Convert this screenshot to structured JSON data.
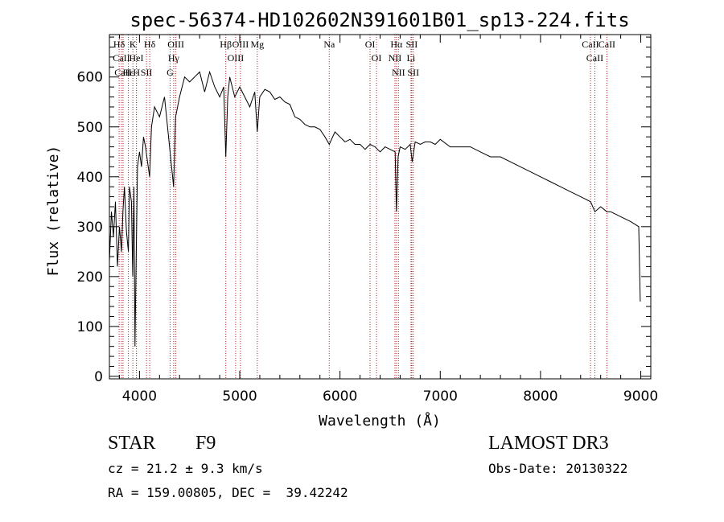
{
  "chart_data": {
    "type": "line",
    "title": "spec-56374-HD102602N391601B01_sp13-224.fits",
    "xlabel": "Wavelength (Å)",
    "ylabel": "Flux (relative)",
    "xlim": [
      3700,
      9100
    ],
    "ylim": [
      -5,
      685
    ],
    "x_ticks": [
      4000,
      5000,
      6000,
      7000,
      8000,
      9000
    ],
    "y_ticks": [
      0,
      100,
      200,
      300,
      400,
      500,
      600
    ],
    "grid": false,
    "series": [
      {
        "name": "Flux",
        "x": [
          3700,
          3720,
          3740,
          3760,
          3780,
          3800,
          3820,
          3835,
          3850,
          3870,
          3889,
          3900,
          3920,
          3933,
          3945,
          3955,
          3968,
          3980,
          4000,
          4020,
          4040,
          4060,
          4080,
          4101,
          4120,
          4150,
          4200,
          4250,
          4300,
          4340,
          4360,
          4400,
          4450,
          4500,
          4550,
          4600,
          4650,
          4700,
          4750,
          4800,
          4840,
          4861,
          4880,
          4900,
          4950,
          5000,
          5050,
          5100,
          5150,
          5175,
          5200,
          5250,
          5300,
          5350,
          5400,
          5450,
          5500,
          5550,
          5600,
          5650,
          5700,
          5750,
          5800,
          5850,
          5893,
          5950,
          6000,
          6050,
          6100,
          6150,
          6200,
          6250,
          6300,
          6350,
          6400,
          6450,
          6500,
          6550,
          6563,
          6580,
          6600,
          6650,
          6700,
          6720,
          6750,
          6800,
          6850,
          6900,
          6950,
          7000,
          7100,
          7200,
          7300,
          7400,
          7500,
          7600,
          7700,
          7800,
          7900,
          8000,
          8100,
          8200,
          8300,
          8400,
          8500,
          8542,
          8600,
          8662,
          8700,
          8800,
          8900,
          8980,
          8995
        ],
        "y": [
          230,
          330,
          280,
          350,
          220,
          300,
          250,
          330,
          380,
          290,
          250,
          380,
          350,
          200,
          380,
          60,
          250,
          420,
          450,
          420,
          480,
          460,
          430,
          400,
          500,
          540,
          520,
          560,
          460,
          380,
          520,
          560,
          600,
          590,
          600,
          610,
          570,
          610,
          580,
          560,
          580,
          440,
          560,
          600,
          560,
          580,
          560,
          540,
          570,
          490,
          560,
          575,
          570,
          555,
          560,
          550,
          545,
          520,
          515,
          505,
          500,
          500,
          495,
          480,
          465,
          490,
          480,
          470,
          475,
          465,
          465,
          455,
          465,
          460,
          450,
          460,
          455,
          450,
          330,
          440,
          460,
          455,
          465,
          430,
          470,
          465,
          470,
          470,
          465,
          475,
          460,
          460,
          460,
          450,
          440,
          440,
          430,
          420,
          410,
          400,
          390,
          380,
          370,
          360,
          350,
          330,
          340,
          330,
          330,
          320,
          310,
          300,
          150
        ]
      }
    ],
    "lines": [
      {
        "label": "Hδ",
        "x": 3797
      },
      {
        "label": "CaII",
        "x": 3820
      },
      {
        "label": "CaII",
        "x": 3836
      },
      {
        "label": "Hε",
        "x": 3889
      },
      {
        "label": "K",
        "x": 3934
      },
      {
        "label": "HeI",
        "x": 3969
      },
      {
        "label": "H",
        "x": 3970
      },
      {
        "label": "Hδ",
        "x": 4102
      },
      {
        "label": "SII",
        "x": 4070
      },
      {
        "label": "OIII",
        "x": 4363
      },
      {
        "label": "Hγ",
        "x": 4341
      },
      {
        "label": "G",
        "x": 4305
      },
      {
        "label": "Hβ",
        "x": 4861
      },
      {
        "label": "OIII",
        "x": 4959
      },
      {
        "label": "OIII",
        "x": 5007
      },
      {
        "label": "Mg",
        "x": 5175
      },
      {
        "label": "Na",
        "x": 5893
      },
      {
        "label": "OI",
        "x": 6300
      },
      {
        "label": "OI",
        "x": 6364
      },
      {
        "label": "Hα",
        "x": 6563
      },
      {
        "label": "NII",
        "x": 6548
      },
      {
        "label": "NII",
        "x": 6583
      },
      {
        "label": "SII",
        "x": 6716
      },
      {
        "label": "Li",
        "x": 6708
      },
      {
        "label": "SII",
        "x": 6731
      },
      {
        "label": "CaII",
        "x": 8498
      },
      {
        "label": "CaII",
        "x": 8542
      },
      {
        "label": "CaII",
        "x": 8662
      }
    ]
  },
  "info": {
    "object_class": "STAR",
    "subclass": "F9",
    "survey": "LAMOST DR3",
    "redshift_line": "cz = 21.2 ± 9.3 km/s",
    "obs_date_line": "Obs-Date: 20130322",
    "coords_line": "RA = 159.00805, DEC =  39.42242"
  },
  "colors": {
    "spectrum": "#000000",
    "line_marker": "#b22222",
    "axis": "#000000"
  }
}
